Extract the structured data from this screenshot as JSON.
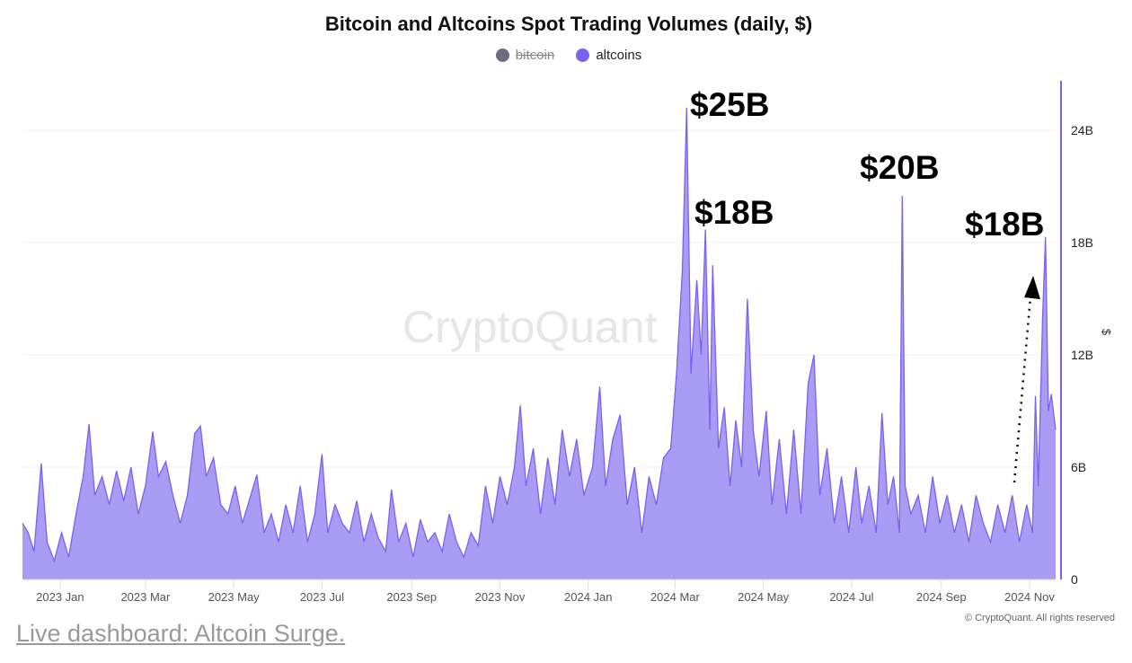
{
  "chart_data": {
    "type": "area",
    "title": "Bitcoin and Altcoins Spot Trading Volumes (daily, $)",
    "legend": [
      {
        "name": "bitcoin",
        "color": "#6e6b7b",
        "hidden": true
      },
      {
        "name": "altcoins",
        "color": "#7b61f0",
        "hidden": false
      }
    ],
    "legend_placement": "top-center",
    "ylabel": "$",
    "ylim": [
      0,
      26.5
    ],
    "yticks": [
      {
        "v": 0,
        "label": "0"
      },
      {
        "v": 6,
        "label": "6B"
      },
      {
        "v": 12,
        "label": "12B"
      },
      {
        "v": 18,
        "label": "18B"
      },
      {
        "v": 24,
        "label": "24B"
      }
    ],
    "xlim": [
      "2022-12-06",
      "2024-11-19"
    ],
    "xticks": [
      {
        "d": "2023-01-01",
        "label": "2023 Jan"
      },
      {
        "d": "2023-03-01",
        "label": "2023 Mar"
      },
      {
        "d": "2023-05-01",
        "label": "2023 May"
      },
      {
        "d": "2023-07-01",
        "label": "2023 Jul"
      },
      {
        "d": "2023-09-01",
        "label": "2023 Sep"
      },
      {
        "d": "2023-11-01",
        "label": "2023 Nov"
      },
      {
        "d": "2024-01-01",
        "label": "2024 Jan"
      },
      {
        "d": "2024-03-01",
        "label": "2024 Mar"
      },
      {
        "d": "2024-05-01",
        "label": "2024 May"
      },
      {
        "d": "2024-07-01",
        "label": "2024 Jul"
      },
      {
        "d": "2024-09-01",
        "label": "2024 Sep"
      },
      {
        "d": "2024-11-01",
        "label": "2024 Nov"
      }
    ],
    "grid": true,
    "series": [
      {
        "name": "altcoins",
        "unit": "B $",
        "points": [
          [
            "2022-12-06",
            3.0
          ],
          [
            "2022-12-10",
            2.5
          ],
          [
            "2022-12-14",
            1.5
          ],
          [
            "2022-12-19",
            6.2
          ],
          [
            "2022-12-23",
            2.0
          ],
          [
            "2022-12-28",
            1.0
          ],
          [
            "2023-01-02",
            2.5
          ],
          [
            "2023-01-07",
            1.2
          ],
          [
            "2023-01-12",
            3.5
          ],
          [
            "2023-01-17",
            5.5
          ],
          [
            "2023-01-21",
            8.3
          ],
          [
            "2023-01-25",
            4.5
          ],
          [
            "2023-01-30",
            5.5
          ],
          [
            "2023-02-04",
            4.0
          ],
          [
            "2023-02-09",
            5.8
          ],
          [
            "2023-02-14",
            4.2
          ],
          [
            "2023-02-19",
            6.0
          ],
          [
            "2023-02-24",
            3.5
          ],
          [
            "2023-03-01",
            5.0
          ],
          [
            "2023-03-06",
            7.9
          ],
          [
            "2023-03-10",
            5.5
          ],
          [
            "2023-03-15",
            6.3
          ],
          [
            "2023-03-20",
            4.5
          ],
          [
            "2023-03-25",
            3.0
          ],
          [
            "2023-03-30",
            4.5
          ],
          [
            "2023-04-04",
            7.8
          ],
          [
            "2023-04-08",
            8.2
          ],
          [
            "2023-04-12",
            5.5
          ],
          [
            "2023-04-17",
            6.5
          ],
          [
            "2023-04-22",
            4.0
          ],
          [
            "2023-04-27",
            3.5
          ],
          [
            "2023-05-02",
            5.0
          ],
          [
            "2023-05-07",
            3.0
          ],
          [
            "2023-05-12",
            4.3
          ],
          [
            "2023-05-17",
            5.6
          ],
          [
            "2023-05-22",
            2.5
          ],
          [
            "2023-05-27",
            3.5
          ],
          [
            "2023-06-01",
            2.0
          ],
          [
            "2023-06-06",
            4.0
          ],
          [
            "2023-06-11",
            2.5
          ],
          [
            "2023-06-16",
            5.0
          ],
          [
            "2023-06-21",
            2.0
          ],
          [
            "2023-06-26",
            3.5
          ],
          [
            "2023-07-01",
            6.7
          ],
          [
            "2023-07-05",
            2.5
          ],
          [
            "2023-07-10",
            4.0
          ],
          [
            "2023-07-15",
            3.0
          ],
          [
            "2023-07-20",
            2.5
          ],
          [
            "2023-07-25",
            4.2
          ],
          [
            "2023-07-30",
            2.0
          ],
          [
            "2023-08-04",
            3.5
          ],
          [
            "2023-08-09",
            2.2
          ],
          [
            "2023-08-14",
            1.5
          ],
          [
            "2023-08-18",
            4.8
          ],
          [
            "2023-08-23",
            2.0
          ],
          [
            "2023-08-28",
            3.0
          ],
          [
            "2023-09-02",
            1.2
          ],
          [
            "2023-09-07",
            3.2
          ],
          [
            "2023-09-12",
            2.0
          ],
          [
            "2023-09-17",
            2.5
          ],
          [
            "2023-09-22",
            1.5
          ],
          [
            "2023-09-27",
            3.5
          ],
          [
            "2023-10-02",
            2.0
          ],
          [
            "2023-10-07",
            1.2
          ],
          [
            "2023-10-12",
            2.5
          ],
          [
            "2023-10-17",
            1.8
          ],
          [
            "2023-10-22",
            5.0
          ],
          [
            "2023-10-27",
            3.0
          ],
          [
            "2023-11-01",
            5.5
          ],
          [
            "2023-11-06",
            4.0
          ],
          [
            "2023-11-11",
            6.0
          ],
          [
            "2023-11-15",
            9.3
          ],
          [
            "2023-11-19",
            5.0
          ],
          [
            "2023-11-24",
            7.0
          ],
          [
            "2023-11-29",
            3.5
          ],
          [
            "2023-12-04",
            6.5
          ],
          [
            "2023-12-09",
            4.0
          ],
          [
            "2023-12-14",
            8.0
          ],
          [
            "2023-12-19",
            5.5
          ],
          [
            "2023-12-24",
            7.5
          ],
          [
            "2023-12-29",
            4.5
          ],
          [
            "2024-01-04",
            6.0
          ],
          [
            "2024-01-09",
            10.3
          ],
          [
            "2024-01-13",
            5.0
          ],
          [
            "2024-01-18",
            7.5
          ],
          [
            "2024-01-23",
            8.8
          ],
          [
            "2024-01-28",
            4.0
          ],
          [
            "2024-02-02",
            6.0
          ],
          [
            "2024-02-07",
            2.5
          ],
          [
            "2024-02-12",
            5.5
          ],
          [
            "2024-02-17",
            4.0
          ],
          [
            "2024-02-22",
            6.5
          ],
          [
            "2024-02-27",
            7.0
          ],
          [
            "2024-03-02",
            11.0
          ],
          [
            "2024-03-06",
            16.5
          ],
          [
            "2024-03-09",
            25.2
          ],
          [
            "2024-03-12",
            11.0
          ],
          [
            "2024-03-16",
            16.0
          ],
          [
            "2024-03-19",
            12.0
          ],
          [
            "2024-03-22",
            18.7
          ],
          [
            "2024-03-25",
            8.0
          ],
          [
            "2024-03-27",
            16.8
          ],
          [
            "2024-03-31",
            7.0
          ],
          [
            "2024-04-04",
            9.2
          ],
          [
            "2024-04-08",
            5.0
          ],
          [
            "2024-04-12",
            8.5
          ],
          [
            "2024-04-16",
            6.0
          ],
          [
            "2024-04-20",
            15.0
          ],
          [
            "2024-04-24",
            8.0
          ],
          [
            "2024-04-28",
            5.5
          ],
          [
            "2024-05-03",
            9.0
          ],
          [
            "2024-05-07",
            4.0
          ],
          [
            "2024-05-12",
            7.5
          ],
          [
            "2024-05-17",
            3.5
          ],
          [
            "2024-05-22",
            8.0
          ],
          [
            "2024-05-27",
            3.5
          ],
          [
            "2024-06-01",
            10.5
          ],
          [
            "2024-06-05",
            12.0
          ],
          [
            "2024-06-09",
            4.5
          ],
          [
            "2024-06-14",
            7.0
          ],
          [
            "2024-06-19",
            3.0
          ],
          [
            "2024-06-24",
            5.5
          ],
          [
            "2024-06-29",
            2.5
          ],
          [
            "2024-07-04",
            6.0
          ],
          [
            "2024-07-08",
            3.0
          ],
          [
            "2024-07-13",
            5.0
          ],
          [
            "2024-07-18",
            2.5
          ],
          [
            "2024-07-22",
            8.9
          ],
          [
            "2024-07-26",
            4.0
          ],
          [
            "2024-07-30",
            5.5
          ],
          [
            "2024-08-03",
            2.5
          ],
          [
            "2024-08-05",
            20.5
          ],
          [
            "2024-08-07",
            5.0
          ],
          [
            "2024-08-11",
            3.5
          ],
          [
            "2024-08-16",
            4.5
          ],
          [
            "2024-08-21",
            2.5
          ],
          [
            "2024-08-26",
            5.5
          ],
          [
            "2024-08-31",
            3.0
          ],
          [
            "2024-09-05",
            4.5
          ],
          [
            "2024-09-10",
            2.5
          ],
          [
            "2024-09-15",
            4.0
          ],
          [
            "2024-09-20",
            2.0
          ],
          [
            "2024-09-25",
            4.5
          ],
          [
            "2024-09-30",
            3.0
          ],
          [
            "2024-10-05",
            2.0
          ],
          [
            "2024-10-10",
            4.0
          ],
          [
            "2024-10-15",
            2.5
          ],
          [
            "2024-10-20",
            4.5
          ],
          [
            "2024-10-25",
            2.0
          ],
          [
            "2024-10-30",
            4.0
          ],
          [
            "2024-11-03",
            2.5
          ],
          [
            "2024-11-05",
            9.8
          ],
          [
            "2024-11-07",
            5.0
          ],
          [
            "2024-11-10",
            14.0
          ],
          [
            "2024-11-12",
            18.3
          ],
          [
            "2024-11-14",
            9.0
          ],
          [
            "2024-11-16",
            9.9
          ],
          [
            "2024-11-19",
            8.0
          ]
        ]
      }
    ],
    "annotations": [
      "$25B",
      "$18B",
      "$20B",
      "$18B"
    ],
    "fill_color": "#a99cf5",
    "line_color": "#7b61f0"
  },
  "watermark": "CryptoQuant",
  "copyright": "© CryptoQuant. All rights reserved",
  "footer_link": "Live dashboard: Altcoin Surge."
}
